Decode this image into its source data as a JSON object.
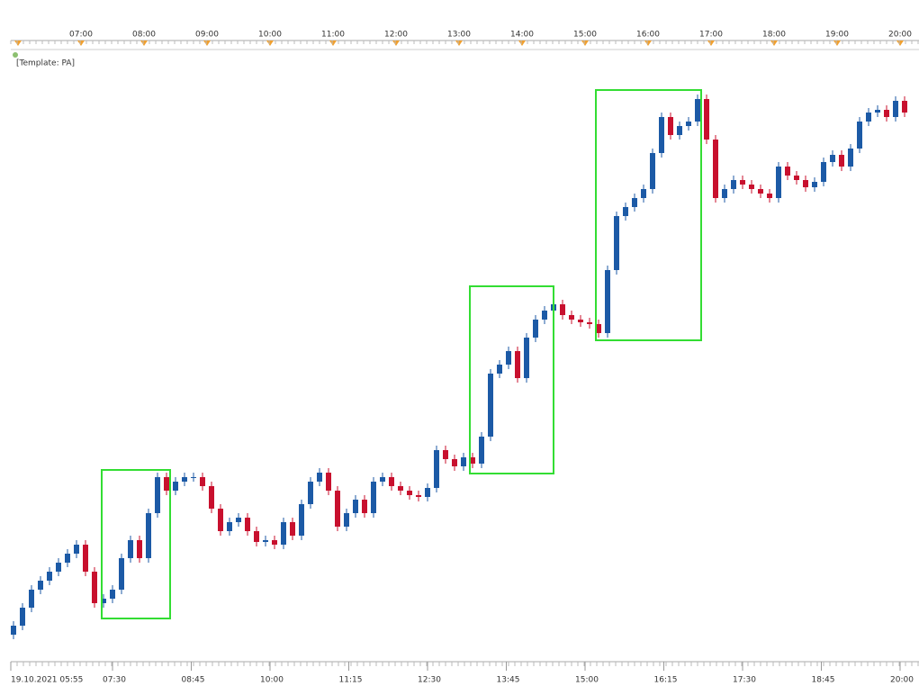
{
  "chart_data": {
    "type": "candlestick",
    "template_label": "[Template: PA]",
    "top_axis_labels": [
      "07:00",
      "08:00",
      "09:00",
      "10:00",
      "11:00",
      "12:00",
      "13:00",
      "14:00",
      "15:00",
      "16:00",
      "17:00",
      "18:00",
      "19:00",
      "20:00"
    ],
    "bottom_axis_labels": [
      "19.10.2021 05:55",
      "07:30",
      "08:45",
      "10:00",
      "11:15",
      "12:30",
      "13:45",
      "15:00",
      "16:15",
      "17:30",
      "18:45",
      "20:00"
    ],
    "ylim": [
      0,
      670
    ],
    "up_color": "#1c5aa6",
    "down_color": "#c8102e",
    "open": [
      25,
      35,
      55,
      75,
      85,
      95,
      105,
      115,
      125,
      95,
      60,
      65,
      75,
      110,
      130,
      110,
      160,
      200,
      185,
      195,
      200,
      200,
      190,
      165,
      140,
      150,
      155,
      140,
      128,
      130,
      125,
      150,
      135,
      170,
      195,
      205,
      185,
      145,
      160,
      175,
      160,
      195,
      200,
      190,
      185,
      180,
      178,
      188,
      230,
      220,
      212,
      222,
      215,
      245,
      315,
      325,
      340,
      310,
      355,
      375,
      385,
      392,
      380,
      375,
      372,
      370,
      360,
      430,
      490,
      500,
      510,
      520,
      560,
      600,
      580,
      590,
      595,
      620,
      575,
      510,
      520,
      530,
      525,
      520,
      515,
      510,
      545,
      535,
      530,
      522,
      528,
      550,
      558,
      545,
      565,
      595,
      605,
      608,
      600,
      618
    ],
    "high": [
      40,
      60,
      80,
      90,
      100,
      110,
      120,
      130,
      130,
      100,
      70,
      80,
      115,
      135,
      135,
      165,
      205,
      205,
      200,
      205,
      205,
      205,
      195,
      170,
      155,
      160,
      160,
      145,
      135,
      135,
      155,
      155,
      175,
      200,
      210,
      210,
      190,
      165,
      180,
      180,
      200,
      205,
      205,
      195,
      190,
      185,
      193,
      235,
      235,
      225,
      227,
      227,
      250,
      320,
      330,
      345,
      345,
      360,
      380,
      390,
      397,
      397,
      385,
      380,
      377,
      375,
      435,
      495,
      505,
      515,
      525,
      565,
      605,
      605,
      595,
      600,
      625,
      625,
      580,
      525,
      535,
      535,
      530,
      525,
      520,
      550,
      550,
      540,
      535,
      533,
      555,
      563,
      563,
      570,
      600,
      610,
      613,
      613,
      623,
      623
    ],
    "low": [
      20,
      30,
      50,
      70,
      80,
      90,
      100,
      110,
      90,
      55,
      55,
      60,
      70,
      105,
      105,
      105,
      155,
      180,
      180,
      190,
      195,
      185,
      160,
      135,
      135,
      145,
      135,
      123,
      123,
      120,
      120,
      130,
      130,
      165,
      190,
      180,
      140,
      140,
      155,
      155,
      155,
      190,
      185,
      180,
      175,
      173,
      173,
      183,
      215,
      207,
      207,
      210,
      210,
      240,
      310,
      320,
      305,
      305,
      350,
      370,
      380,
      375,
      370,
      367,
      365,
      355,
      355,
      425,
      485,
      495,
      505,
      515,
      555,
      575,
      575,
      585,
      590,
      570,
      505,
      505,
      515,
      520,
      515,
      510,
      505,
      505,
      530,
      525,
      517,
      517,
      523,
      545,
      540,
      540,
      560,
      590,
      600,
      595,
      595,
      600
    ],
    "close": [
      35,
      55,
      75,
      85,
      95,
      105,
      115,
      125,
      95,
      60,
      65,
      75,
      110,
      130,
      110,
      160,
      200,
      185,
      195,
      200,
      200,
      190,
      165,
      140,
      150,
      155,
      140,
      128,
      130,
      125,
      150,
      135,
      170,
      195,
      205,
      185,
      145,
      160,
      175,
      160,
      195,
      200,
      190,
      185,
      180,
      178,
      188,
      230,
      220,
      212,
      222,
      215,
      245,
      315,
      325,
      340,
      310,
      355,
      375,
      385,
      392,
      380,
      375,
      372,
      370,
      360,
      430,
      490,
      500,
      510,
      520,
      560,
      600,
      580,
      590,
      595,
      620,
      575,
      510,
      520,
      530,
      525,
      520,
      515,
      510,
      545,
      535,
      530,
      522,
      528,
      550,
      558,
      545,
      565,
      595,
      605,
      608,
      600,
      618,
      605
    ]
  }
}
